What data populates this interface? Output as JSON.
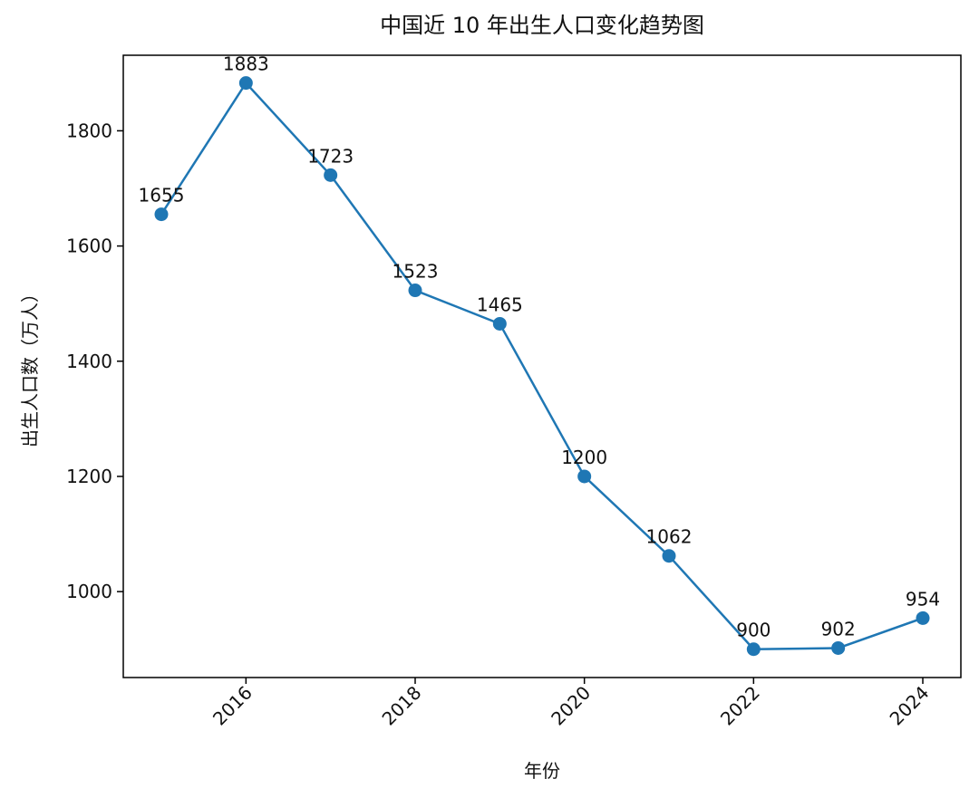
{
  "chart_data": {
    "type": "line",
    "title": "中国近 10 年出生人口变化趋势图",
    "x_label": "年份",
    "y_label": "出生人口数（万人）",
    "x": [
      2015,
      2016,
      2017,
      2018,
      2019,
      2020,
      2021,
      2022,
      2023,
      2024
    ],
    "series": [
      {
        "name": "出生人口",
        "color": "#1f77b4",
        "values": [
          1655,
          1883,
          1723,
          1523,
          1465,
          1200,
          1062,
          900,
          902,
          954
        ]
      }
    ],
    "xlim": [
      2014.55,
      2024.45
    ],
    "xticks": [
      2016,
      2018,
      2020,
      2022,
      2024
    ],
    "ylim": [
      850.85,
      1931.15
    ],
    "yticks": [
      1000,
      1200,
      1400,
      1600,
      1800
    ],
    "grid": false
  }
}
